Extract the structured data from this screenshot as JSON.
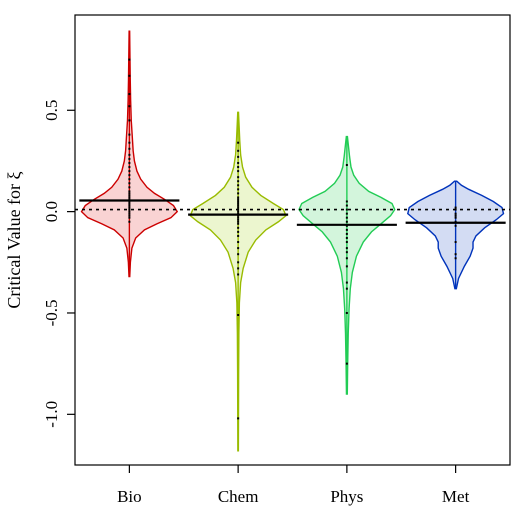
{
  "chart_data": {
    "type": "violin",
    "title": "",
    "xlabel": "",
    "ylabel": "Critical Value for ξ",
    "ylim": [
      -1.25,
      0.97
    ],
    "yticks": [
      0.5,
      0.0,
      -0.5,
      -1.0
    ],
    "ytick_labels": [
      "0.5",
      "0.0",
      "-0.5",
      "-1.0"
    ],
    "reference_line": 0.01,
    "categories": [
      "Bio",
      "Chem",
      "Phys",
      "Met"
    ],
    "colors": {
      "Bio": {
        "stroke": "#cc0000",
        "fill": "#f9d3d3"
      },
      "Chem": {
        "stroke": "#99bb00",
        "fill": "#ecf6cf"
      },
      "Phys": {
        "stroke": "#22cc55",
        "fill": "#d3f5dc"
      },
      "Met": {
        "stroke": "#0033bb",
        "fill": "#d3dcf3"
      }
    },
    "series": [
      {
        "category": "Bio",
        "median": 0.055,
        "range": [
          -0.32,
          0.89
        ],
        "density": [
          [
            -0.32,
            0.3
          ],
          [
            -0.25,
            0.8
          ],
          [
            -0.18,
            2
          ],
          [
            -0.13,
            5
          ],
          [
            -0.09,
            12
          ],
          [
            -0.06,
            22
          ],
          [
            -0.03,
            33
          ],
          [
            0.0,
            38
          ],
          [
            0.03,
            35
          ],
          [
            0.06,
            28
          ],
          [
            0.09,
            20
          ],
          [
            0.12,
            14
          ],
          [
            0.16,
            9
          ],
          [
            0.2,
            6
          ],
          [
            0.25,
            4
          ],
          [
            0.3,
            3
          ],
          [
            0.38,
            2.2
          ],
          [
            0.45,
            1.5
          ],
          [
            0.55,
            1
          ],
          [
            0.65,
            0.7
          ],
          [
            0.75,
            0.5
          ],
          [
            0.89,
            0.2
          ]
        ],
        "points": [
          0.75,
          0.67,
          0.58,
          0.52,
          0.45,
          0.38,
          0.34,
          0.31,
          0.28,
          0.26,
          0.24,
          0.22,
          0.2,
          0.18,
          0.16,
          0.14,
          0.12,
          0.1,
          0.09,
          0.08,
          0.07,
          0.06,
          0.05,
          0.04,
          0.03,
          0.02,
          0.01,
          0.0,
          -0.01,
          -0.02,
          -0.03,
          -0.05
        ]
      },
      {
        "category": "Chem",
        "median": -0.015,
        "range": [
          -1.18,
          0.49
        ],
        "density": [
          [
            -1.18,
            0.2
          ],
          [
            -1.0,
            0.3
          ],
          [
            -0.8,
            0.4
          ],
          [
            -0.6,
            0.6
          ],
          [
            -0.45,
            1
          ],
          [
            -0.35,
            2
          ],
          [
            -0.28,
            4
          ],
          [
            -0.2,
            8
          ],
          [
            -0.14,
            14
          ],
          [
            -0.09,
            22
          ],
          [
            -0.05,
            32
          ],
          [
            -0.02,
            38
          ],
          [
            0.01,
            36
          ],
          [
            0.04,
            28
          ],
          [
            0.08,
            18
          ],
          [
            0.12,
            11
          ],
          [
            0.17,
            6
          ],
          [
            0.22,
            3.5
          ],
          [
            0.28,
            2
          ],
          [
            0.35,
            1.3
          ],
          [
            0.42,
            0.8
          ],
          [
            0.49,
            0.3
          ]
        ],
        "points": [
          0.34,
          0.3,
          0.27,
          0.24,
          0.22,
          0.2,
          0.17,
          0.15,
          0.13,
          0.11,
          0.09,
          0.07,
          0.06,
          0.05,
          0.04,
          0.03,
          0.02,
          0.01,
          0.0,
          -0.01,
          -0.02,
          -0.03,
          -0.04,
          -0.05,
          -0.06,
          -0.08,
          -0.1,
          -0.12,
          -0.15,
          -0.18,
          -0.21,
          -0.25,
          -0.28,
          -0.31,
          -0.51,
          -1.02
        ]
      },
      {
        "category": "Phys",
        "median": -0.065,
        "range": [
          -0.9,
          0.37
        ],
        "density": [
          [
            -0.9,
            0.3
          ],
          [
            -0.75,
            0.6
          ],
          [
            -0.6,
            1
          ],
          [
            -0.48,
            1.6
          ],
          [
            -0.38,
            2.5
          ],
          [
            -0.3,
            4
          ],
          [
            -0.22,
            7
          ],
          [
            -0.15,
            12
          ],
          [
            -0.1,
            18
          ],
          [
            -0.06,
            25
          ],
          [
            -0.02,
            32
          ],
          [
            0.01,
            35
          ],
          [
            0.04,
            33
          ],
          [
            0.07,
            25
          ],
          [
            0.1,
            16
          ],
          [
            0.14,
            9
          ],
          [
            0.18,
            5
          ],
          [
            0.22,
            3
          ],
          [
            0.27,
            2
          ],
          [
            0.32,
            1.2
          ],
          [
            0.37,
            0.4
          ]
        ],
        "points": [
          0.23,
          0.05,
          0.03,
          0.01,
          -0.01,
          -0.03,
          -0.05,
          -0.07,
          -0.09,
          -0.11,
          -0.13,
          -0.15,
          -0.18,
          -0.2,
          -0.23,
          -0.27,
          -0.35,
          -0.38,
          -0.5,
          -0.75
        ]
      },
      {
        "category": "Met",
        "median": -0.055,
        "range": [
          -0.38,
          0.15
        ],
        "density": [
          [
            -0.38,
            0.5
          ],
          [
            -0.33,
            2
          ],
          [
            -0.27,
            6
          ],
          [
            -0.22,
            10
          ],
          [
            -0.18,
            12
          ],
          [
            -0.15,
            12
          ],
          [
            -0.12,
            14
          ],
          [
            -0.08,
            20
          ],
          [
            -0.04,
            28
          ],
          [
            -0.01,
            33
          ],
          [
            0.02,
            32
          ],
          [
            0.05,
            26
          ],
          [
            0.08,
            18
          ],
          [
            0.11,
            9
          ],
          [
            0.13,
            4
          ],
          [
            0.15,
            0.8
          ]
        ],
        "points": [
          0.02,
          0.01,
          -0.01,
          -0.02,
          -0.03,
          -0.05,
          -0.07,
          -0.15,
          -0.21,
          -0.23
        ]
      }
    ]
  }
}
